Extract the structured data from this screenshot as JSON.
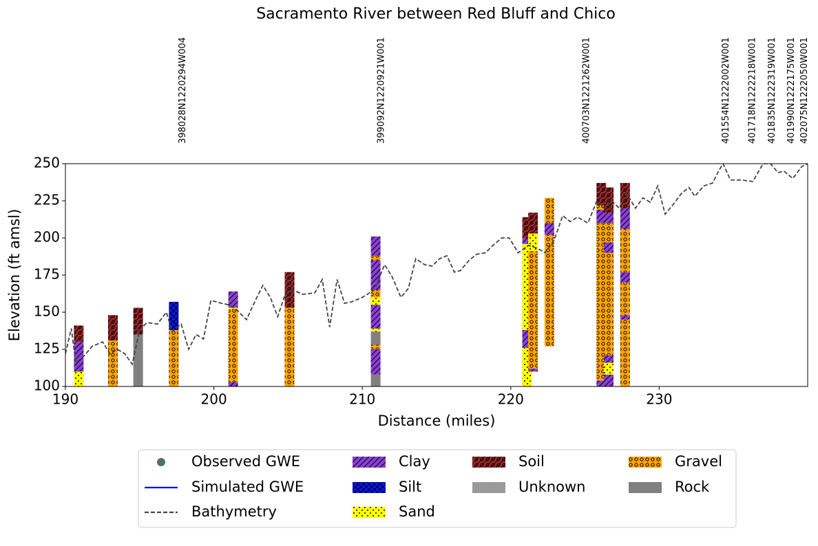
{
  "chart_data": {
    "type": "borehole-profile",
    "title": "Sacramento River between Red Bluff and Chico",
    "x_label": "Distance (miles)",
    "y_label": "Elevation (ft amsl)",
    "xlim": [
      190,
      240
    ],
    "ylim": [
      100,
      250
    ],
    "xticks": [
      190,
      200,
      210,
      220,
      230
    ],
    "yticks": [
      100,
      125,
      150,
      175,
      200,
      225,
      250
    ],
    "wells": [
      {
        "name": "398028N1220294W004",
        "x": 197.9
      },
      {
        "name": "399092N1220921W001",
        "x": 211.3
      },
      {
        "name": "400703N1221262W001",
        "x": 225.1
      },
      {
        "name": "401554N1222002W001",
        "x": 234.5
      },
      {
        "name": "401718N1222218W001",
        "x": 236.3
      },
      {
        "name": "401835N1222319W001",
        "x": 237.6
      },
      {
        "name": "401990N1222175W001",
        "x": 238.9
      },
      {
        "name": "402075N1222050W001",
        "x": 239.8
      }
    ],
    "series": [
      {
        "name": "Observed GWE",
        "color": "#4f7360"
      },
      {
        "name": "Simulated GWE",
        "color": "#0000ff"
      },
      {
        "name": "Bathymetry",
        "color": "#444444",
        "x": [
          190.0,
          190.4,
          190.7,
          191.2,
          191.8,
          192.5,
          193.0,
          193.5,
          194.0,
          194.5,
          195.0,
          195.5,
          196.2,
          196.8,
          197.2,
          197.8,
          198.3,
          198.8,
          199.3,
          199.8,
          200.5,
          201.0,
          201.5,
          202.2,
          202.8,
          203.3,
          203.8,
          204.3,
          204.8,
          205.3,
          206.0,
          206.8,
          207.3,
          207.8,
          208.3,
          208.8,
          209.3,
          210.0,
          210.8,
          211.5,
          212.0,
          212.6,
          213.1,
          213.6,
          214.2,
          214.7,
          215.2,
          215.7,
          216.2,
          216.6,
          217.2,
          217.7,
          218.3,
          218.8,
          219.4,
          219.9,
          220.5,
          221.2,
          221.8,
          222.3,
          222.9,
          223.5,
          224.0,
          224.5,
          225.2,
          225.8,
          226.3,
          226.8,
          227.3,
          227.8,
          228.4,
          228.9,
          229.4,
          229.9,
          230.4,
          230.9,
          231.5,
          232.0,
          232.4,
          233.0,
          233.6,
          234.0,
          234.3,
          234.8,
          235.5,
          236.3,
          237.0,
          237.5,
          238.0,
          238.4,
          239.0,
          239.6,
          240.0
        ],
        "values": [
          122,
          139,
          116,
          120,
          127,
          130,
          122,
          125,
          122,
          115,
          138,
          143,
          142,
          150,
          137,
          142,
          125,
          135,
          132,
          158,
          156,
          155,
          152,
          145,
          158,
          168,
          160,
          147,
          162,
          165,
          162,
          163,
          172,
          140,
          172,
          156,
          157,
          160,
          165,
          182,
          174,
          160,
          166,
          186,
          182,
          181,
          186,
          188,
          177,
          178,
          185,
          189,
          190,
          195,
          200,
          200,
          190,
          195,
          193,
          190,
          198,
          215,
          211,
          214,
          210,
          225,
          220,
          225,
          220,
          230,
          220,
          227,
          224,
          235,
          216,
          222,
          230,
          234,
          228,
          235,
          237,
          245,
          250,
          239,
          239,
          238,
          250,
          250,
          244,
          245,
          240,
          248,
          250
        ]
      }
    ],
    "materials": [
      {
        "name": "Clay",
        "color": "#8a3fd6",
        "hatch": "///"
      },
      {
        "name": "Silt",
        "color": "#0a14ff",
        "hatch": "xx"
      },
      {
        "name": "Sand",
        "color": "#ffff00",
        "hatch": "..."
      },
      {
        "name": "Soil",
        "color": "#a52a2a",
        "hatch": "o/"
      },
      {
        "name": "Unknown",
        "color": "#ffffff",
        "hatch": "**"
      },
      {
        "name": "Gravel",
        "color": "#ffa500",
        "hatch": "oo"
      },
      {
        "name": "Rock",
        "color": "#808080",
        "hatch": ""
      }
    ],
    "boreholes": [
      {
        "x": 190.9,
        "layers": [
          {
            "material": "Sand",
            "bottom": 100,
            "top": 110
          },
          {
            "material": "Clay",
            "bottom": 110,
            "top": 130
          },
          {
            "material": "Soil",
            "bottom": 130,
            "top": 141
          }
        ]
      },
      {
        "x": 193.2,
        "layers": [
          {
            "material": "Gravel",
            "bottom": 100,
            "top": 131
          },
          {
            "material": "Soil",
            "bottom": 131,
            "top": 148
          }
        ]
      },
      {
        "x": 194.9,
        "layers": [
          {
            "material": "Rock",
            "bottom": 100,
            "top": 135
          },
          {
            "material": "Soil",
            "bottom": 135,
            "top": 153
          }
        ]
      },
      {
        "x": 197.3,
        "layers": [
          {
            "material": "Gravel",
            "bottom": 100,
            "top": 138
          },
          {
            "material": "Silt",
            "bottom": 138,
            "top": 157
          }
        ]
      },
      {
        "x": 201.3,
        "layers": [
          {
            "material": "Clay",
            "bottom": 100,
            "top": 103
          },
          {
            "material": "Gravel",
            "bottom": 103,
            "top": 152
          },
          {
            "material": "Sand",
            "bottom": 152,
            "top": 153
          },
          {
            "material": "Clay",
            "bottom": 153,
            "top": 164
          }
        ]
      },
      {
        "x": 205.1,
        "layers": [
          {
            "material": "Gravel",
            "bottom": 100,
            "top": 153
          },
          {
            "material": "Soil",
            "bottom": 153,
            "top": 177
          }
        ]
      },
      {
        "x": 210.9,
        "layers": [
          {
            "material": "Rock",
            "bottom": 100,
            "top": 108
          },
          {
            "material": "Clay",
            "bottom": 108,
            "top": 125
          },
          {
            "material": "Gravel",
            "bottom": 125,
            "top": 128
          },
          {
            "material": "Rock",
            "bottom": 128,
            "top": 137
          },
          {
            "material": "Sand",
            "bottom": 137,
            "top": 139
          },
          {
            "material": "Clay",
            "bottom": 139,
            "top": 155
          },
          {
            "material": "Sand",
            "bottom": 155,
            "top": 160
          },
          {
            "material": "Gravel",
            "bottom": 160,
            "top": 165
          },
          {
            "material": "Clay",
            "bottom": 165,
            "top": 185
          },
          {
            "material": "Gravel",
            "bottom": 185,
            "top": 188
          },
          {
            "material": "Clay",
            "bottom": 188,
            "top": 201
          }
        ]
      },
      {
        "x": 221.1,
        "layers": [
          {
            "material": "Sand",
            "bottom": 100,
            "top": 126
          },
          {
            "material": "Clay",
            "bottom": 126,
            "top": 138
          },
          {
            "material": "Sand",
            "bottom": 138,
            "top": 196
          },
          {
            "material": "Clay",
            "bottom": 196,
            "top": 200
          },
          {
            "material": "Soil",
            "bottom": 200,
            "top": 214
          }
        ]
      },
      {
        "x": 221.5,
        "layers": [
          {
            "material": "Clay",
            "bottom": 110,
            "top": 112
          },
          {
            "material": "Gravel",
            "bottom": 112,
            "top": 191
          },
          {
            "material": "Sand",
            "bottom": 191,
            "top": 203
          },
          {
            "material": "Soil",
            "bottom": 203,
            "top": 217
          }
        ]
      },
      {
        "x": 222.6,
        "layers": [
          {
            "material": "Gravel",
            "bottom": 127,
            "top": 202
          },
          {
            "material": "Clay",
            "bottom": 202,
            "top": 210
          },
          {
            "material": "Gravel",
            "bottom": 210,
            "top": 227
          }
        ]
      },
      {
        "x": 226.1,
        "layers": [
          {
            "material": "Clay",
            "bottom": 100,
            "top": 104
          },
          {
            "material": "Gravel",
            "bottom": 104,
            "top": 210
          },
          {
            "material": "Clay",
            "bottom": 210,
            "top": 219
          },
          {
            "material": "Gravel",
            "bottom": 219,
            "top": 222
          },
          {
            "material": "Soil",
            "bottom": 222,
            "top": 237
          }
        ]
      },
      {
        "x": 226.6,
        "layers": [
          {
            "material": "Clay",
            "bottom": 100,
            "top": 108
          },
          {
            "material": "Sand",
            "bottom": 108,
            "top": 116
          },
          {
            "material": "Clay",
            "bottom": 116,
            "top": 121
          },
          {
            "material": "Gravel",
            "bottom": 121,
            "top": 190
          },
          {
            "material": "Clay",
            "bottom": 190,
            "top": 197
          },
          {
            "material": "Gravel",
            "bottom": 197,
            "top": 210
          },
          {
            "material": "Clay",
            "bottom": 210,
            "top": 217
          },
          {
            "material": "Soil",
            "bottom": 217,
            "top": 234
          }
        ]
      },
      {
        "x": 227.7,
        "layers": [
          {
            "material": "Gravel",
            "bottom": 100,
            "top": 145
          },
          {
            "material": "Clay",
            "bottom": 145,
            "top": 148
          },
          {
            "material": "Gravel",
            "bottom": 148,
            "top": 170
          },
          {
            "material": "Clay",
            "bottom": 170,
            "top": 177
          },
          {
            "material": "Gravel",
            "bottom": 177,
            "top": 206
          },
          {
            "material": "Clay",
            "bottom": 206,
            "top": 220
          },
          {
            "material": "Soil",
            "bottom": 220,
            "top": 237
          }
        ]
      }
    ]
  }
}
